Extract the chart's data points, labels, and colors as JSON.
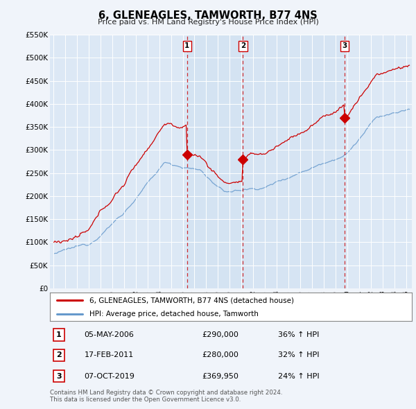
{
  "title": "6, GLENEAGLES, TAMWORTH, B77 4NS",
  "subtitle": "Price paid vs. HM Land Registry's House Price Index (HPI)",
  "ylim": [
    0,
    550000
  ],
  "yticks": [
    0,
    50000,
    100000,
    150000,
    200000,
    250000,
    300000,
    350000,
    400000,
    450000,
    500000,
    550000
  ],
  "ytick_labels": [
    "£0",
    "£50K",
    "£100K",
    "£150K",
    "£200K",
    "£250K",
    "£300K",
    "£350K",
    "£400K",
    "£450K",
    "£500K",
    "£550K"
  ],
  "background_color": "#f0f4fa",
  "plot_bg_color": "#dce8f5",
  "highlight_color": "#e8f0fa",
  "grid_color": "#ffffff",
  "sale_prices": [
    290000,
    280000,
    369950
  ],
  "sale_labels": [
    "1",
    "2",
    "3"
  ],
  "sale_label_percents": [
    "36% ↑ HPI",
    "32% ↑ HPI",
    "24% ↑ HPI"
  ],
  "sale_date_strs": [
    "05-MAY-2006",
    "17-FEB-2011",
    "07-OCT-2019"
  ],
  "sale_price_strs": [
    "£290,000",
    "£280,000",
    "£369,950"
  ],
  "line_color_property": "#cc0000",
  "line_color_hpi": "#6699cc",
  "legend_label_property": "6, GLENEAGLES, TAMWORTH, B77 4NS (detached house)",
  "legend_label_hpi": "HPI: Average price, detached house, Tamworth",
  "footer_line1": "Contains HM Land Registry data © Crown copyright and database right 2024.",
  "footer_line2": "This data is licensed under the Open Government Licence v3.0.",
  "xmin": 1994.7,
  "xmax": 2025.5
}
